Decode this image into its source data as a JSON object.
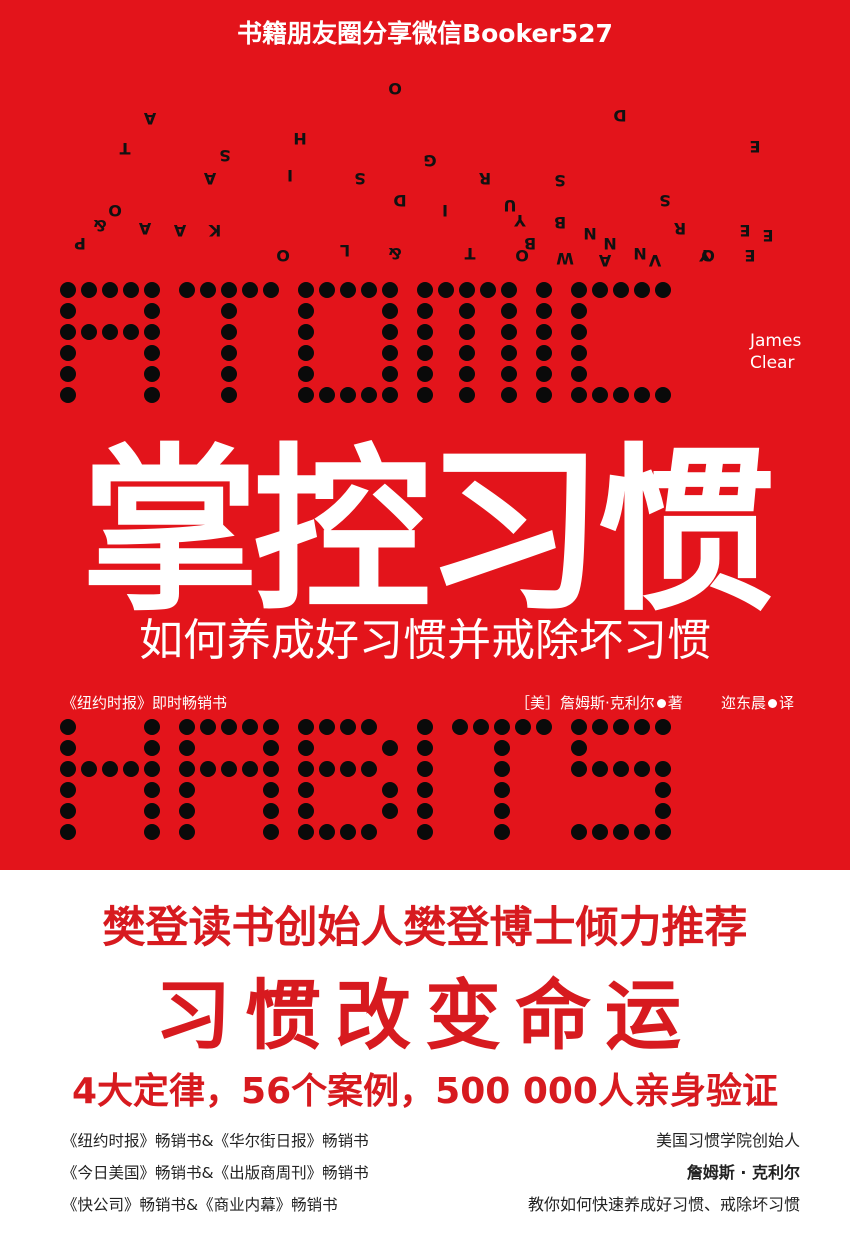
{
  "watermark": "书籍朋友圈分享微信Booker527",
  "scatter_letters": [
    "O",
    "A",
    "D",
    "T",
    "H",
    "E",
    "A",
    "S",
    "I",
    "G",
    "R",
    "S",
    "U",
    "A",
    "D",
    "Y",
    "B",
    "I",
    "E",
    "S",
    "K",
    "O",
    "N",
    "R",
    "P",
    "Y",
    "N",
    "B",
    "&",
    "O",
    "L",
    "T",
    "O",
    "W",
    "A",
    "V",
    "O",
    "E",
    "E",
    "&",
    "A",
    "N",
    "S"
  ],
  "title_en_top": "ATOMIC",
  "title_en_bottom": "HABITS",
  "author_en": [
    "James",
    "Clear"
  ],
  "title_cn": "掌控习惯",
  "subtitle_cn": "如何养成好习惯并戒除坏习惯",
  "nyt_badge": "《纽约时报》即时畅销书",
  "credit": {
    "origin": "［美］",
    "author": "詹姆斯·克利尔",
    "role_author": "著",
    "translator": "迩东晨",
    "role_translator": "译"
  },
  "promo": {
    "recommendation": "樊登读书创始人樊登博士倾力推荐",
    "slogan": "习惯改变命运",
    "stats": "4大定律，56个案例，500 000人亲身验证"
  },
  "bestsellers": [
    "《纽约时报》畅销书&《华尔街日报》畅销书",
    "《今日美国》畅销书&《出版商周刊》畅销书",
    "《快公司》畅销书&《商业内幕》畅销书"
  ],
  "founder": {
    "title": "美国习惯学院创始人",
    "name": "詹姆斯 · 克利尔",
    "tagline": "教你如何快速养成好习惯、戒除坏习惯"
  },
  "colors": {
    "red": "#e3141b",
    "dot": "#0a0a0a",
    "promo_red": "#d71a1f"
  }
}
